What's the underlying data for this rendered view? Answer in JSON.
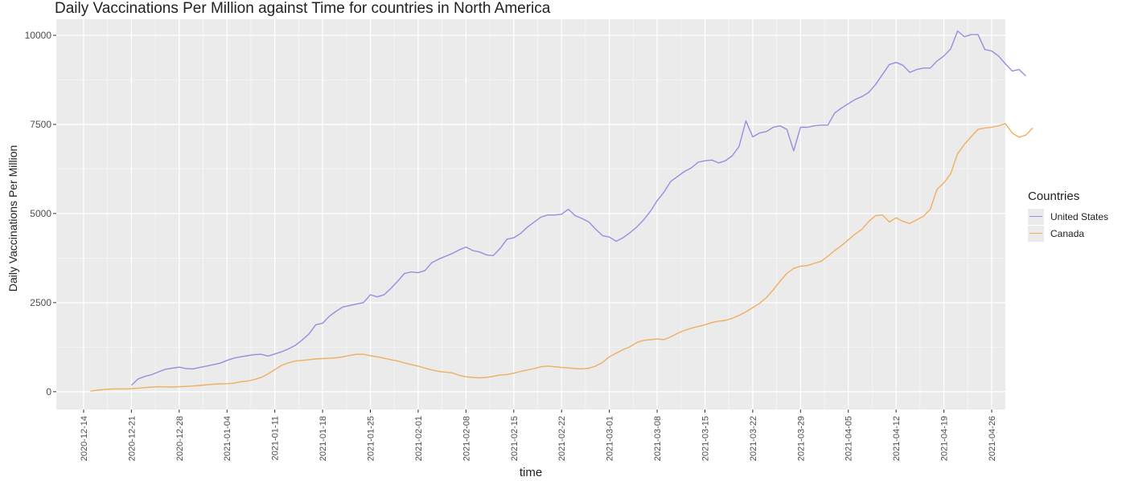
{
  "chart_data": {
    "type": "line",
    "title": "Daily Vaccinations Per Million against Time for countries in North America",
    "xlabel": "time",
    "ylabel": "Daily Vaccinations Per Million",
    "xlim": [
      "2020-12-10",
      "2021-04-28"
    ],
    "ylim": [
      -500,
      10450
    ],
    "x_ticks": [
      "2020-12-14",
      "2020-12-21",
      "2020-12-28",
      "2021-01-04",
      "2021-01-11",
      "2021-01-18",
      "2021-01-25",
      "2021-02-01",
      "2021-02-08",
      "2021-02-15",
      "2021-02-22",
      "2021-03-01",
      "2021-03-08",
      "2021-03-15",
      "2021-03-22",
      "2021-03-29",
      "2021-04-05",
      "2021-04-12",
      "2021-04-19",
      "2021-04-26"
    ],
    "y_ticks": [
      0,
      2500,
      5000,
      7500,
      10000
    ],
    "y_tick_labels": [
      "0",
      "2500",
      "5000",
      "7500",
      "10000"
    ],
    "grid": true,
    "legend": {
      "title": "Countries",
      "placement": "right"
    },
    "series": [
      {
        "name": "United States",
        "color": "#9b8be0",
        "points": [
          [
            "2020-12-21",
            180
          ],
          [
            "2020-12-22",
            360
          ],
          [
            "2020-12-23",
            430
          ],
          [
            "2020-12-24",
            480
          ],
          [
            "2020-12-25",
            560
          ],
          [
            "2020-12-26",
            630
          ],
          [
            "2020-12-27",
            660
          ],
          [
            "2020-12-28",
            690
          ],
          [
            "2020-12-29",
            650
          ],
          [
            "2020-12-30",
            640
          ],
          [
            "2020-12-31",
            680
          ],
          [
            "2021-01-01",
            720
          ],
          [
            "2021-01-02",
            760
          ],
          [
            "2021-01-03",
            800
          ],
          [
            "2021-01-04",
            880
          ],
          [
            "2021-01-05",
            940
          ],
          [
            "2021-01-06",
            980
          ],
          [
            "2021-01-07",
            1010
          ],
          [
            "2021-01-08",
            1040
          ],
          [
            "2021-01-09",
            1050
          ],
          [
            "2021-01-10",
            1000
          ],
          [
            "2021-01-11",
            1060
          ],
          [
            "2021-01-12",
            1120
          ],
          [
            "2021-01-13",
            1200
          ],
          [
            "2021-01-14",
            1300
          ],
          [
            "2021-01-15",
            1450
          ],
          [
            "2021-01-16",
            1620
          ],
          [
            "2021-01-17",
            1880
          ],
          [
            "2021-01-18",
            1920
          ],
          [
            "2021-01-19",
            2120
          ],
          [
            "2021-01-20",
            2260
          ],
          [
            "2021-01-21",
            2380
          ],
          [
            "2021-01-22",
            2420
          ],
          [
            "2021-01-23",
            2460
          ],
          [
            "2021-01-24",
            2500
          ],
          [
            "2021-01-25",
            2720
          ],
          [
            "2021-01-26",
            2660
          ],
          [
            "2021-01-27",
            2720
          ],
          [
            "2021-01-28",
            2900
          ],
          [
            "2021-01-29",
            3100
          ],
          [
            "2021-01-30",
            3320
          ],
          [
            "2021-01-31",
            3360
          ],
          [
            "2021-02-01",
            3340
          ],
          [
            "2021-02-02",
            3400
          ],
          [
            "2021-02-03",
            3620
          ],
          [
            "2021-02-04",
            3720
          ],
          [
            "2021-02-05",
            3800
          ],
          [
            "2021-02-06",
            3880
          ],
          [
            "2021-02-07",
            3980
          ],
          [
            "2021-02-08",
            4060
          ],
          [
            "2021-02-09",
            3960
          ],
          [
            "2021-02-10",
            3920
          ],
          [
            "2021-02-11",
            3840
          ],
          [
            "2021-02-12",
            3820
          ],
          [
            "2021-02-13",
            4020
          ],
          [
            "2021-02-14",
            4280
          ],
          [
            "2021-02-15",
            4320
          ],
          [
            "2021-02-16",
            4440
          ],
          [
            "2021-02-17",
            4620
          ],
          [
            "2021-02-18",
            4760
          ],
          [
            "2021-02-19",
            4900
          ],
          [
            "2021-02-20",
            4960
          ],
          [
            "2021-02-21",
            4960
          ],
          [
            "2021-02-22",
            4980
          ],
          [
            "2021-02-23",
            5120
          ],
          [
            "2021-02-24",
            4940
          ],
          [
            "2021-02-25",
            4860
          ],
          [
            "2021-02-26",
            4760
          ],
          [
            "2021-02-27",
            4560
          ],
          [
            "2021-02-28",
            4380
          ],
          [
            "2021-03-01",
            4340
          ],
          [
            "2021-03-02",
            4220
          ],
          [
            "2021-03-03",
            4320
          ],
          [
            "2021-03-04",
            4460
          ],
          [
            "2021-03-05",
            4620
          ],
          [
            "2021-03-06",
            4820
          ],
          [
            "2021-03-07",
            5060
          ],
          [
            "2021-03-08",
            5360
          ],
          [
            "2021-03-09",
            5600
          ],
          [
            "2021-03-10",
            5900
          ],
          [
            "2021-03-11",
            6040
          ],
          [
            "2021-03-12",
            6180
          ],
          [
            "2021-03-13",
            6280
          ],
          [
            "2021-03-14",
            6440
          ],
          [
            "2021-03-15",
            6480
          ],
          [
            "2021-03-16",
            6500
          ],
          [
            "2021-03-17",
            6420
          ],
          [
            "2021-03-18",
            6480
          ],
          [
            "2021-03-19",
            6620
          ],
          [
            "2021-03-20",
            6880
          ],
          [
            "2021-03-21",
            7600
          ],
          [
            "2021-03-22",
            7150
          ],
          [
            "2021-03-23",
            7260
          ],
          [
            "2021-03-24",
            7300
          ],
          [
            "2021-03-25",
            7420
          ],
          [
            "2021-03-26",
            7460
          ],
          [
            "2021-03-27",
            7360
          ],
          [
            "2021-03-28",
            6760
          ],
          [
            "2021-03-29",
            7420
          ],
          [
            "2021-03-30",
            7420
          ],
          [
            "2021-03-31",
            7460
          ],
          [
            "2021-04-01",
            7480
          ],
          [
            "2021-04-02",
            7480
          ],
          [
            "2021-04-03",
            7820
          ],
          [
            "2021-04-04",
            7960
          ],
          [
            "2021-04-05",
            8080
          ],
          [
            "2021-04-06",
            8200
          ],
          [
            "2021-04-07",
            8280
          ],
          [
            "2021-04-08",
            8400
          ],
          [
            "2021-04-09",
            8620
          ],
          [
            "2021-04-10",
            8900
          ],
          [
            "2021-04-11",
            9180
          ],
          [
            "2021-04-12",
            9240
          ],
          [
            "2021-04-13",
            9160
          ],
          [
            "2021-04-14",
            8960
          ],
          [
            "2021-04-15",
            9040
          ],
          [
            "2021-04-16",
            9080
          ],
          [
            "2021-04-17",
            9080
          ],
          [
            "2021-04-18",
            9280
          ],
          [
            "2021-04-19",
            9420
          ],
          [
            "2021-04-20",
            9620
          ],
          [
            "2021-04-21",
            10120
          ],
          [
            "2021-04-22",
            9960
          ],
          [
            "2021-04-23",
            10020
          ],
          [
            "2021-04-24",
            10020
          ],
          [
            "2021-04-25",
            9600
          ],
          [
            "2021-04-26",
            9560
          ],
          [
            "2021-04-27",
            9420
          ],
          [
            "2021-04-28",
            9200
          ],
          [
            "2021-04-29",
            9000
          ],
          [
            "2021-04-30",
            9040
          ],
          [
            "2021-05-01",
            8860
          ]
        ]
      },
      {
        "name": "Canada",
        "color": "#f0ae5e",
        "points": [
          [
            "2020-12-15",
            15
          ],
          [
            "2020-12-16",
            40
          ],
          [
            "2020-12-17",
            60
          ],
          [
            "2020-12-18",
            75
          ],
          [
            "2020-12-19",
            80
          ],
          [
            "2020-12-20",
            80
          ],
          [
            "2020-12-21",
            85
          ],
          [
            "2020-12-22",
            100
          ],
          [
            "2020-12-23",
            115
          ],
          [
            "2020-12-24",
            130
          ],
          [
            "2020-12-25",
            140
          ],
          [
            "2020-12-26",
            135
          ],
          [
            "2020-12-27",
            130
          ],
          [
            "2020-12-28",
            140
          ],
          [
            "2020-12-29",
            150
          ],
          [
            "2020-12-30",
            160
          ],
          [
            "2020-12-31",
            175
          ],
          [
            "2021-01-01",
            195
          ],
          [
            "2021-01-02",
            210
          ],
          [
            "2021-01-03",
            220
          ],
          [
            "2021-01-04",
            225
          ],
          [
            "2021-01-05",
            240
          ],
          [
            "2021-01-06",
            280
          ],
          [
            "2021-01-07",
            300
          ],
          [
            "2021-01-08",
            340
          ],
          [
            "2021-01-09",
            400
          ],
          [
            "2021-01-10",
            500
          ],
          [
            "2021-01-11",
            620
          ],
          [
            "2021-01-12",
            740
          ],
          [
            "2021-01-13",
            810
          ],
          [
            "2021-01-14",
            860
          ],
          [
            "2021-01-15",
            880
          ],
          [
            "2021-01-16",
            900
          ],
          [
            "2021-01-17",
            920
          ],
          [
            "2021-01-18",
            930
          ],
          [
            "2021-01-19",
            940
          ],
          [
            "2021-01-20",
            950
          ],
          [
            "2021-01-21",
            980
          ],
          [
            "2021-01-22",
            1020
          ],
          [
            "2021-01-23",
            1050
          ],
          [
            "2021-01-24",
            1050
          ],
          [
            "2021-01-25",
            1010
          ],
          [
            "2021-01-26",
            980
          ],
          [
            "2021-01-27",
            940
          ],
          [
            "2021-01-28",
            900
          ],
          [
            "2021-01-29",
            860
          ],
          [
            "2021-01-30",
            810
          ],
          [
            "2021-01-31",
            760
          ],
          [
            "2021-02-01",
            720
          ],
          [
            "2021-02-02",
            660
          ],
          [
            "2021-02-03",
            610
          ],
          [
            "2021-02-04",
            570
          ],
          [
            "2021-02-05",
            550
          ],
          [
            "2021-02-06",
            530
          ],
          [
            "2021-02-07",
            460
          ],
          [
            "2021-02-08",
            420
          ],
          [
            "2021-02-09",
            400
          ],
          [
            "2021-02-10",
            390
          ],
          [
            "2021-02-11",
            400
          ],
          [
            "2021-02-12",
            430
          ],
          [
            "2021-02-13",
            470
          ],
          [
            "2021-02-14",
            480
          ],
          [
            "2021-02-15",
            520
          ],
          [
            "2021-02-16",
            570
          ],
          [
            "2021-02-17",
            610
          ],
          [
            "2021-02-18",
            650
          ],
          [
            "2021-02-19",
            700
          ],
          [
            "2021-02-20",
            720
          ],
          [
            "2021-02-21",
            700
          ],
          [
            "2021-02-22",
            680
          ],
          [
            "2021-02-23",
            670
          ],
          [
            "2021-02-24",
            650
          ],
          [
            "2021-02-25",
            640
          ],
          [
            "2021-02-26",
            660
          ],
          [
            "2021-02-27",
            720
          ],
          [
            "2021-02-28",
            820
          ],
          [
            "2021-03-01",
            980
          ],
          [
            "2021-03-02",
            1080
          ],
          [
            "2021-03-03",
            1180
          ],
          [
            "2021-03-04",
            1260
          ],
          [
            "2021-03-05",
            1380
          ],
          [
            "2021-03-06",
            1440
          ],
          [
            "2021-03-07",
            1460
          ],
          [
            "2021-03-08",
            1480
          ],
          [
            "2021-03-09",
            1460
          ],
          [
            "2021-03-10",
            1540
          ],
          [
            "2021-03-11",
            1640
          ],
          [
            "2021-03-12",
            1720
          ],
          [
            "2021-03-13",
            1780
          ],
          [
            "2021-03-14",
            1830
          ],
          [
            "2021-03-15",
            1880
          ],
          [
            "2021-03-16",
            1940
          ],
          [
            "2021-03-17",
            1980
          ],
          [
            "2021-03-18",
            2000
          ],
          [
            "2021-03-19",
            2060
          ],
          [
            "2021-03-20",
            2140
          ],
          [
            "2021-03-21",
            2240
          ],
          [
            "2021-03-22",
            2360
          ],
          [
            "2021-03-23",
            2480
          ],
          [
            "2021-03-24",
            2640
          ],
          [
            "2021-03-25",
            2860
          ],
          [
            "2021-03-26",
            3100
          ],
          [
            "2021-03-27",
            3320
          ],
          [
            "2021-03-28",
            3460
          ],
          [
            "2021-03-29",
            3520
          ],
          [
            "2021-03-30",
            3540
          ],
          [
            "2021-03-31",
            3600
          ],
          [
            "2021-04-01",
            3660
          ],
          [
            "2021-04-02",
            3800
          ],
          [
            "2021-04-03",
            3960
          ],
          [
            "2021-04-04",
            4100
          ],
          [
            "2021-04-05",
            4260
          ],
          [
            "2021-04-06",
            4420
          ],
          [
            "2021-04-07",
            4560
          ],
          [
            "2021-04-08",
            4780
          ],
          [
            "2021-04-09",
            4940
          ],
          [
            "2021-04-10",
            4960
          ],
          [
            "2021-04-11",
            4760
          ],
          [
            "2021-04-12",
            4880
          ],
          [
            "2021-04-13",
            4780
          ],
          [
            "2021-04-14",
            4720
          ],
          [
            "2021-04-15",
            4820
          ],
          [
            "2021-04-16",
            4920
          ],
          [
            "2021-04-17",
            5120
          ],
          [
            "2021-04-18",
            5680
          ],
          [
            "2021-04-19",
            5860
          ],
          [
            "2021-04-20",
            6120
          ],
          [
            "2021-04-21",
            6680
          ],
          [
            "2021-04-22",
            6940
          ],
          [
            "2021-04-23",
            7160
          ],
          [
            "2021-04-24",
            7360
          ],
          [
            "2021-04-25",
            7400
          ],
          [
            "2021-04-26",
            7420
          ],
          [
            "2021-04-27",
            7460
          ],
          [
            "2021-04-28",
            7520
          ],
          [
            "2021-04-29",
            7260
          ],
          [
            "2021-04-30",
            7140
          ],
          [
            "2021-05-01",
            7200
          ],
          [
            "2021-05-02",
            7400
          ]
        ]
      }
    ]
  }
}
